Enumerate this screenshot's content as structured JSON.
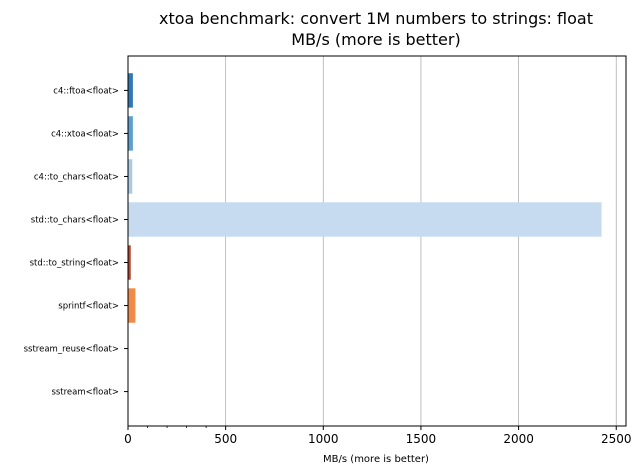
{
  "chart_data": {
    "type": "bar",
    "orientation": "horizontal",
    "title": "xtoa benchmark: convert 1M numbers to strings: float",
    "subtitle": "MB/s (more is better)",
    "xlabel": "MB/s (more is better)",
    "ylabel": "",
    "categories": [
      "c4::ftoa<float>",
      "c4::xtoa<float>",
      "c4::to_chars<float>",
      "std::to_chars<float>",
      "std::to_string<float>",
      "sprintf<float>",
      "sstream_reuse<float>",
      "sstream<float>"
    ],
    "values": [
      25,
      25,
      22,
      2425,
      14,
      38,
      2,
      2
    ],
    "colors": [
      "#2f78b4",
      "#5b9fcf",
      "#a9cce4",
      "#c6dbef",
      "#b5452c",
      "#f08a48",
      "#fdae6b",
      "#fdd0a2"
    ],
    "xlim": [
      0,
      2550
    ],
    "x_ticks": [
      0,
      500,
      1000,
      1500,
      2000,
      2500
    ],
    "x_minor_ticks": [
      100,
      200,
      300,
      400
    ],
    "grid": "x-major"
  }
}
